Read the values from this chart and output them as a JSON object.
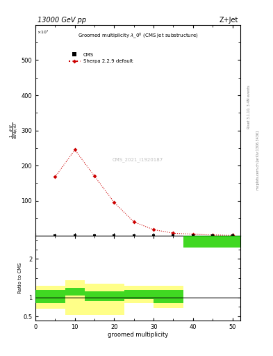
{
  "title_top": "13000 GeV pp",
  "title_right": "Z+Jet",
  "watermark": "CMS_2021_I1920187",
  "rivet_label": "Rivet 3.1.10, 3.4M events",
  "mcplots_label": "mcplots.cern.ch [arXiv:1306.3436]",
  "cms_x": [
    5,
    10,
    15,
    20,
    25,
    30,
    35,
    40,
    45,
    50
  ],
  "sherpa_x": [
    5,
    10,
    15,
    20,
    25,
    30,
    35,
    40,
    45,
    50
  ],
  "sherpa_y": [
    168,
    245,
    170,
    95,
    40,
    18,
    8,
    5,
    3,
    2
  ],
  "ratio_bin_edges": [
    0,
    7.5,
    12.5,
    22.5,
    30,
    37.5,
    43,
    52
  ],
  "ratio_green_lo": [
    0.85,
    1.05,
    0.9,
    0.95,
    0.85,
    2.3,
    2.3
  ],
  "ratio_green_hi": [
    1.2,
    1.25,
    1.15,
    1.2,
    1.2,
    2.6,
    2.6
  ],
  "ratio_yellow_lo": [
    0.7,
    0.55,
    0.55,
    0.85,
    0.72,
    2.3,
    2.3
  ],
  "ratio_yellow_hi": [
    1.3,
    1.45,
    1.35,
    1.3,
    1.3,
    2.6,
    2.6
  ],
  "ylim_main": [
    0,
    600
  ],
  "ylim_ratio": [
    0.4,
    2.6
  ],
  "xlim": [
    0,
    52
  ],
  "color_sherpa": "#cc0000",
  "color_green": "#00cc00",
  "color_yellow": "#ffff88",
  "color_cms_marker": "black",
  "background": "white"
}
